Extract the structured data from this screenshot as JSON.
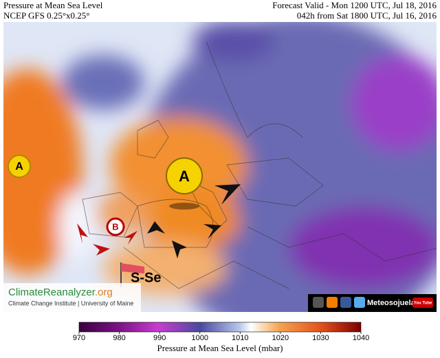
{
  "header": {
    "title": "Pressure at Mean Sea Level",
    "model": "NCEP GFS 0.25°x0.25°",
    "valid": "Forecast Valid - Mon 1200 UTC, Jul 18, 2016",
    "lead": "042h from Sat 1800 UTC, Jul 16, 2016"
  },
  "map": {
    "highs": [
      "A",
      "A"
    ],
    "low": "B",
    "wind": "S-Se"
  },
  "branding": {
    "site": "ClimateReanalyzer",
    "site_suffix": ".org",
    "institute": "Climate Change Institute | University of Maine",
    "social": "Meteosojuela",
    "video": "You Tube"
  },
  "colorbar": {
    "range": [
      970,
      1040
    ],
    "ticks": [
      970,
      980,
      990,
      1000,
      1010,
      1020,
      1030,
      1040
    ],
    "label": "Pressure at Mean Sea Level (mbar)"
  }
}
